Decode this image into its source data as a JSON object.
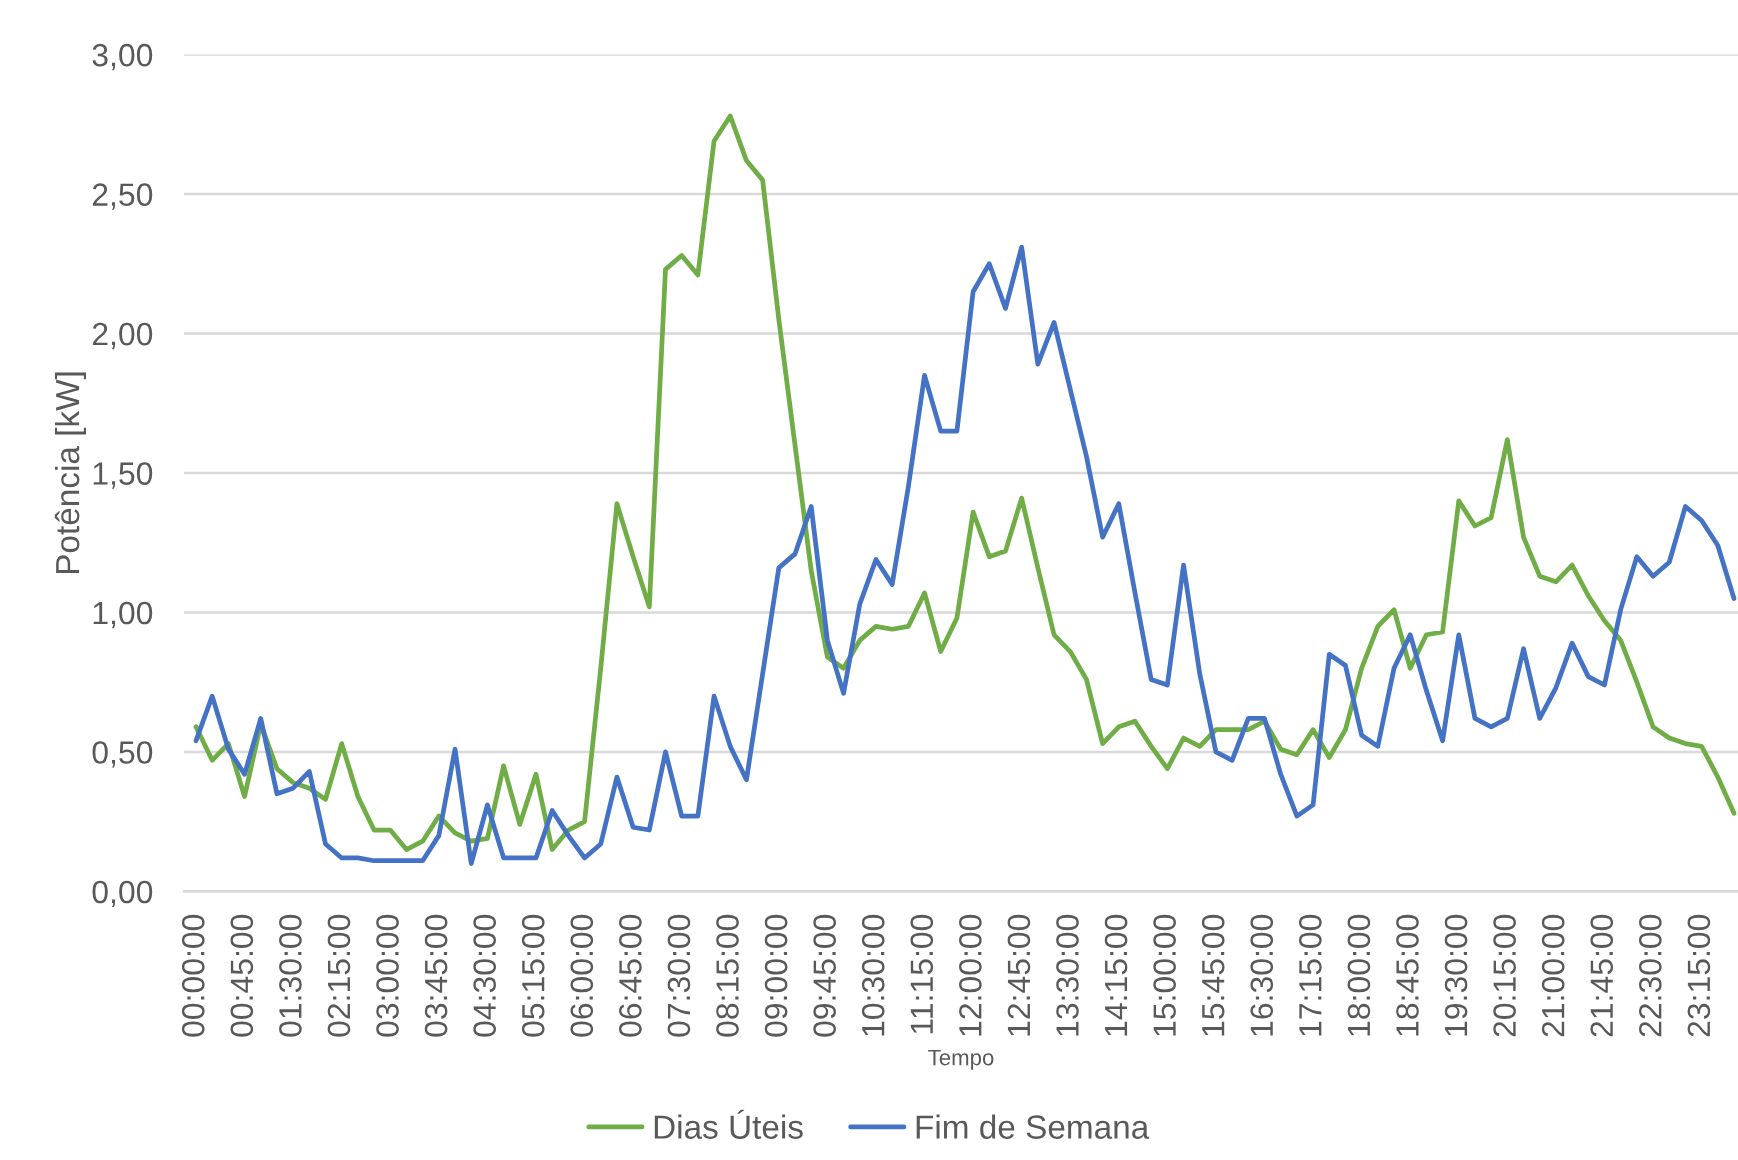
{
  "chart_data": {
    "type": "line",
    "xlabel": "Tempo",
    "ylabel": "Potência [kW]",
    "categories": [
      "00:00:00",
      null,
      null,
      "00:45:00",
      null,
      null,
      "01:30:00",
      null,
      null,
      "02:15:00",
      null,
      null,
      "03:00:00",
      null,
      null,
      "03:45:00",
      null,
      null,
      "04:30:00",
      null,
      null,
      "05:15:00",
      null,
      null,
      "06:00:00",
      null,
      null,
      "06:45:00",
      null,
      null,
      "07:30:00",
      null,
      null,
      "08:15:00",
      null,
      null,
      "09:00:00",
      null,
      null,
      "09:45:00",
      null,
      null,
      "10:30:00",
      null,
      null,
      "11:15:00",
      null,
      null,
      "12:00:00",
      null,
      null,
      "12:45:00",
      null,
      null,
      "13:30:00",
      null,
      null,
      "14:15:00",
      null,
      null,
      "15:00:00",
      null,
      null,
      "15:45:00",
      null,
      null,
      "16:30:00",
      null,
      null,
      "17:15:00",
      null,
      null,
      "18:00:00",
      null,
      null,
      "18:45:00",
      null,
      null,
      "19:30:00",
      null,
      null,
      "20:15:00",
      null,
      null,
      "21:00:00",
      null,
      null,
      "21:45:00",
      null,
      null,
      "22:30:00",
      null,
      null,
      "23:15:00",
      null,
      null
    ],
    "series": [
      {
        "name": "Dias Úteis",
        "color": "#70ad47",
        "values": [
          0.59,
          0.47,
          0.53,
          0.34,
          0.6,
          0.44,
          0.39,
          0.37,
          0.33,
          0.53,
          0.34,
          0.22,
          0.22,
          0.15,
          0.18,
          0.27,
          0.21,
          0.18,
          0.19,
          0.45,
          0.24,
          0.42,
          0.15,
          0.22,
          0.25,
          0.8,
          1.39,
          1.2,
          1.02,
          2.23,
          2.28,
          2.21,
          2.69,
          2.78,
          2.62,
          2.55,
          2.05,
          1.6,
          1.15,
          0.84,
          0.8,
          0.9,
          0.95,
          0.94,
          0.95,
          1.07,
          0.86,
          0.98,
          1.36,
          1.2,
          1.22,
          1.41,
          1.16,
          0.92,
          0.86,
          0.76,
          0.53,
          0.59,
          0.61,
          0.52,
          0.44,
          0.55,
          0.52,
          0.58,
          0.58,
          0.58,
          0.61,
          0.51,
          0.49,
          0.58,
          0.48,
          0.58,
          0.8,
          0.95,
          1.01,
          0.8,
          0.92,
          0.93,
          1.4,
          1.31,
          1.34,
          1.62,
          1.27,
          1.13,
          1.11,
          1.17,
          1.06,
          0.97,
          0.9,
          0.75,
          0.59,
          0.55,
          0.53,
          0.52,
          0.41,
          0.28
        ]
      },
      {
        "name": "Fim de Semana",
        "color": "#4472c4",
        "values": [
          0.54,
          0.7,
          0.51,
          0.42,
          0.62,
          0.35,
          0.37,
          0.43,
          0.17,
          0.12,
          0.12,
          0.11,
          0.11,
          0.11,
          0.11,
          0.2,
          0.51,
          0.1,
          0.31,
          0.12,
          0.12,
          0.12,
          0.29,
          0.2,
          0.12,
          0.17,
          0.41,
          0.23,
          0.22,
          0.5,
          0.27,
          0.27,
          0.7,
          0.52,
          0.4,
          0.78,
          1.16,
          1.21,
          1.38,
          0.9,
          0.71,
          1.03,
          1.19,
          1.1,
          1.45,
          1.85,
          1.65,
          1.65,
          2.15,
          2.25,
          2.09,
          2.31,
          1.89,
          2.04,
          1.8,
          1.56,
          1.27,
          1.39,
          1.07,
          0.76,
          0.74,
          1.17,
          0.78,
          0.5,
          0.47,
          0.62,
          0.62,
          0.42,
          0.27,
          0.31,
          0.85,
          0.81,
          0.56,
          0.52,
          0.8,
          0.92,
          0.72,
          0.54,
          0.92,
          0.62,
          0.59,
          0.62,
          0.87,
          0.62,
          0.73,
          0.89,
          0.77,
          0.74,
          1.01,
          1.2,
          1.13,
          1.18,
          1.38,
          1.33,
          1.24,
          1.05
        ]
      }
    ],
    "ylim": [
      0,
      3
    ],
    "yticks": [
      {
        "value": 0,
        "label": "0,00"
      },
      {
        "value": 0.5,
        "label": "0,50"
      },
      {
        "value": 1,
        "label": "1,00"
      },
      {
        "value": 1.5,
        "label": "1,50"
      },
      {
        "value": 2,
        "label": "2,00"
      },
      {
        "value": 2.5,
        "label": "2,50"
      },
      {
        "value": 3,
        "label": "3,00"
      }
    ],
    "grid": "y",
    "legend": "bottom"
  }
}
